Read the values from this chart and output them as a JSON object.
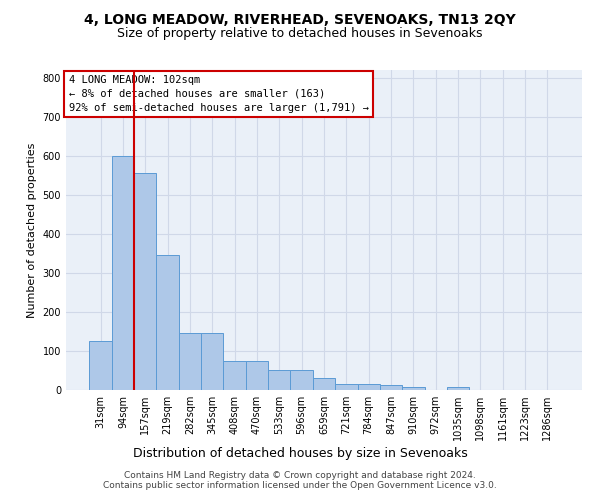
{
  "title": "4, LONG MEADOW, RIVERHEAD, SEVENOAKS, TN13 2QY",
  "subtitle": "Size of property relative to detached houses in Sevenoaks",
  "xlabel": "Distribution of detached houses by size in Sevenoaks",
  "ylabel": "Number of detached properties",
  "bar_values": [
    125,
    600,
    555,
    345,
    145,
    145,
    75,
    75,
    50,
    50,
    30,
    15,
    15,
    12,
    8,
    0,
    8,
    0,
    0,
    0,
    0
  ],
  "bar_labels": [
    "31sqm",
    "94sqm",
    "157sqm",
    "219sqm",
    "282sqm",
    "345sqm",
    "408sqm",
    "470sqm",
    "533sqm",
    "596sqm",
    "659sqm",
    "721sqm",
    "784sqm",
    "847sqm",
    "910sqm",
    "972sqm",
    "1035sqm",
    "1098sqm",
    "1161sqm",
    "1223sqm",
    "1286sqm"
  ],
  "bar_color": "#aec8e8",
  "bar_edge_color": "#5b9bd5",
  "grid_color": "#d0d8e8",
  "background_color": "#eaf0f8",
  "vline_x": 1.5,
  "vline_color": "#cc0000",
  "annotation_text": "4 LONG MEADOW: 102sqm\n← 8% of detached houses are smaller (163)\n92% of semi-detached houses are larger (1,791) →",
  "annotation_box_color": "white",
  "annotation_border_color": "#cc0000",
  "ylim": [
    0,
    820
  ],
  "yticks": [
    0,
    100,
    200,
    300,
    400,
    500,
    600,
    700,
    800
  ],
  "footer": "Contains HM Land Registry data © Crown copyright and database right 2024.\nContains public sector information licensed under the Open Government Licence v3.0.",
  "title_fontsize": 10,
  "subtitle_fontsize": 9,
  "xlabel_fontsize": 9,
  "ylabel_fontsize": 8,
  "tick_fontsize": 7,
  "annotation_fontsize": 7.5,
  "footer_fontsize": 6.5
}
